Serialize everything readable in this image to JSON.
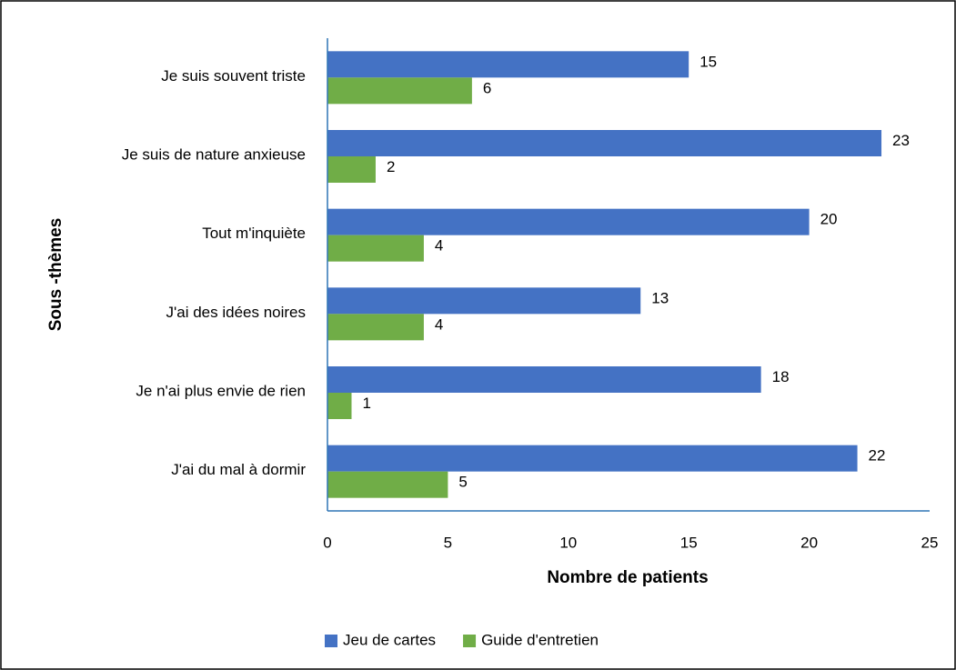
{
  "chart_data": {
    "type": "bar",
    "orientation": "horizontal",
    "xlabel": "Nombre de patients",
    "ylabel": "Sous -thèmes",
    "categories": [
      "Je suis souvent triste",
      "Je suis de nature anxieuse",
      "Tout m'inquiète",
      "J'ai des idées noires",
      "Je n'ai plus envie de rien",
      "J'ai du mal à dormir"
    ],
    "series": [
      {
        "name": "Jeu de cartes",
        "color": "#4472c4",
        "values": [
          15,
          23,
          20,
          13,
          18,
          22
        ]
      },
      {
        "name": "Guide d'entretien",
        "color": "#70ad47",
        "values": [
          6,
          2,
          4,
          4,
          1,
          5
        ]
      }
    ],
    "xlim": [
      0,
      25
    ],
    "xticks": [
      0,
      5,
      10,
      15,
      20,
      25
    ],
    "grid": false,
    "legend": "bottom"
  }
}
